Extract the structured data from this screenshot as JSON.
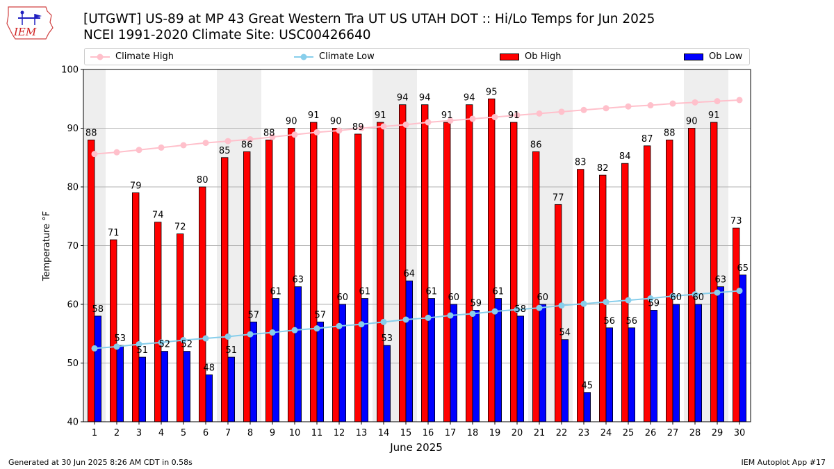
{
  "header": {
    "title_line1": "[UTGWT] US-89 at MP 43 Great Western Tra UT US UTAH DOT :: Hi/Lo Temps for Jun 2025",
    "title_line2": "NCEI 1991-2020 Climate Site: USC00426640",
    "logo_text": "IEM"
  },
  "footer": {
    "left": "Generated at 30 Jun 2025 8:26 AM CDT in 0.58s",
    "right": "IEM Autoplot App #17"
  },
  "colors": {
    "ob_high": "#ff0000",
    "ob_low": "#0000ff",
    "climate_high": "#ffc0cb",
    "climate_low": "#87ceeb",
    "weekend_shade": "#eeeeee",
    "grid": "#b0b0b0"
  },
  "chart_data": {
    "type": "bar",
    "xlabel": "June 2025",
    "ylabel": "Temperature °F",
    "ylim": [
      40,
      100
    ],
    "yticks": [
      40,
      50,
      60,
      70,
      80,
      90,
      100
    ],
    "grid": "horizontal",
    "legend_placement": "top",
    "shaded_weekend_days": [
      1,
      7,
      8,
      14,
      15,
      21,
      22,
      28,
      29
    ],
    "categories": [
      "1",
      "2",
      "3",
      "4",
      "5",
      "6",
      "7",
      "8",
      "9",
      "10",
      "11",
      "12",
      "13",
      "14",
      "15",
      "16",
      "17",
      "18",
      "19",
      "20",
      "21",
      "22",
      "23",
      "24",
      "25",
      "26",
      "27",
      "28",
      "29",
      "30"
    ],
    "series": [
      {
        "name": "Climate High",
        "kind": "line",
        "values": [
          85.6,
          85.9,
          86.3,
          86.7,
          87.1,
          87.5,
          87.8,
          88.1,
          88.5,
          88.9,
          89.3,
          89.6,
          90.0,
          90.3,
          90.6,
          91.0,
          91.3,
          91.6,
          91.9,
          92.2,
          92.5,
          92.8,
          93.1,
          93.4,
          93.7,
          93.9,
          94.2,
          94.4,
          94.6,
          94.8
        ]
      },
      {
        "name": "Climate Low",
        "kind": "line",
        "values": [
          52.5,
          52.8,
          53.2,
          53.5,
          53.9,
          54.2,
          54.5,
          54.9,
          55.2,
          55.6,
          55.9,
          56.3,
          56.6,
          57.0,
          57.4,
          57.7,
          58.1,
          58.4,
          58.8,
          59.1,
          59.4,
          59.8,
          60.1,
          60.4,
          60.7,
          61.0,
          61.4,
          61.7,
          62.0,
          62.3
        ]
      },
      {
        "name": "Ob High",
        "kind": "bar",
        "values": [
          88,
          71,
          79,
          74,
          72,
          80,
          85,
          86,
          88,
          90,
          91,
          90,
          89,
          91,
          94,
          94,
          91,
          94,
          95,
          91,
          86,
          77,
          83,
          82,
          84,
          87,
          88,
          90,
          91,
          73
        ]
      },
      {
        "name": "Ob Low",
        "kind": "bar",
        "values": [
          58,
          53,
          51,
          52,
          52,
          48,
          51,
          57,
          61,
          63,
          57,
          60,
          61,
          53,
          64,
          61,
          60,
          59,
          61,
          58,
          60,
          54,
          45,
          56,
          56,
          59,
          60,
          60,
          63,
          65
        ]
      }
    ]
  }
}
